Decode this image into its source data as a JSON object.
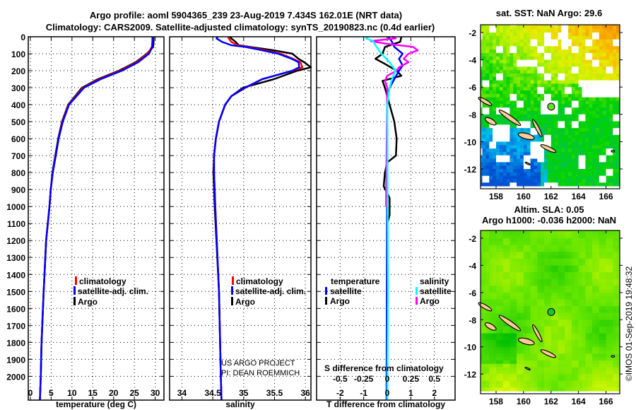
{
  "title": {
    "line1": "Argo profile: aoml 5904365_239 23-Aug-2019 7.434S 162.01E (NRT data)",
    "line2": "Climatology: CARS2009. Satellite-adjusted climatology: synTS_20190823.nc (0.4d earlier)"
  },
  "depth_axis": {
    "ticks": [
      "0",
      "100",
      "200",
      "300",
      "400",
      "500",
      "600",
      "700",
      "800",
      "900",
      "1000",
      "1100",
      "1200",
      "1300",
      "1400",
      "1500",
      "1600",
      "1700",
      "1800",
      "1900",
      "2000"
    ],
    "ylim": [
      2140,
      0
    ]
  },
  "chart_data": [
    {
      "type": "line",
      "xlabel": "temperature (deg C)",
      "ylabel": "depth",
      "xlim": [
        -0.5,
        32.1
      ],
      "ylim": [
        2140,
        0
      ],
      "grid": true,
      "xticks": [
        0,
        5,
        10,
        15,
        20,
        25,
        30
      ],
      "xtick_labels": [
        "0",
        "5",
        "10",
        "15",
        "20",
        "25",
        "30"
      ],
      "legend": {
        "placement": "lower-center",
        "items": [
          "climatology",
          "satellite-adj. clim.",
          "Argo"
        ]
      },
      "series": [
        {
          "name": "Argo",
          "color": "#000000",
          "depth": [
            0,
            30,
            60,
            100,
            150,
            200,
            250,
            300,
            400,
            500,
            600,
            700,
            800,
            900,
            1000,
            1200,
            1500,
            1800,
            2000,
            2140
          ],
          "values": [
            29.6,
            29.6,
            29.5,
            28.0,
            25.3,
            21.3,
            16.2,
            12.4,
            9.1,
            7.6,
            6.7,
            6.0,
            5.3,
            4.9,
            4.6,
            3.8,
            3.2,
            2.7,
            2.5,
            2.3
          ]
        },
        {
          "name": "climatology",
          "color": "#ff0000",
          "depth": [
            0,
            30,
            60,
            100,
            150,
            200,
            250,
            300,
            400,
            500,
            600,
            700,
            800,
            900,
            1000,
            1200,
            1500,
            1800,
            2000,
            2140
          ],
          "values": [
            29.3,
            29.3,
            29.2,
            28.2,
            25.6,
            21.7,
            16.6,
            12.7,
            9.2,
            7.7,
            6.8,
            6.1,
            5.4,
            4.9,
            4.6,
            3.8,
            3.2,
            2.7,
            2.5,
            2.3
          ]
        },
        {
          "name": "satellite-adj. clim.",
          "color": "#0000ff",
          "depth": [
            0,
            30,
            60,
            100,
            150,
            200,
            250,
            300,
            400,
            500,
            600,
            700,
            800,
            900,
            1000,
            1200,
            1500,
            1800,
            2000,
            2140
          ],
          "values": [
            29.5,
            29.4,
            29.3,
            28.5,
            25.9,
            22.0,
            16.9,
            12.9,
            9.3,
            7.8,
            6.8,
            6.1,
            5.4,
            4.9,
            4.6,
            3.8,
            3.2,
            2.7,
            2.5,
            2.3
          ]
        }
      ]
    },
    {
      "type": "line",
      "xlabel": "salinity",
      "ylabel": "depth",
      "xlim": [
        33.8,
        36.09
      ],
      "ylim": [
        2140,
        0
      ],
      "grid": true,
      "xticks": [
        34,
        34.5,
        35,
        35.5,
        36
      ],
      "xtick_labels": [
        "34",
        "34.5",
        "35",
        "35.5",
        "36"
      ],
      "legend": {
        "placement": "lower-center",
        "items": [
          "climatology",
          "satellite-adj. clim.",
          "Argo"
        ]
      },
      "series": [
        {
          "name": "Argo",
          "color": "#000000",
          "depth": [
            0,
            10,
            30,
            50,
            60,
            80,
            100,
            130,
            150,
            180,
            200,
            250,
            300,
            350,
            400,
            500,
            600,
            700,
            800,
            1000,
            1500,
            2000,
            2140
          ],
          "values": [
            34.78,
            34.8,
            34.87,
            34.92,
            35.1,
            35.49,
            35.79,
            35.89,
            35.98,
            36.1,
            35.87,
            35.49,
            34.99,
            34.8,
            34.7,
            34.6,
            34.55,
            34.52,
            34.51,
            34.53,
            34.6,
            34.63,
            34.64
          ]
        },
        {
          "name": "climatology",
          "color": "#ff0000",
          "depth": [
            0,
            10,
            30,
            50,
            60,
            80,
            100,
            130,
            150,
            180,
            200,
            250,
            300,
            350,
            400,
            500,
            600,
            700,
            800,
            1000,
            1500,
            2000,
            2140
          ],
          "values": [
            34.75,
            34.76,
            34.8,
            34.9,
            35.06,
            35.35,
            35.6,
            35.8,
            35.92,
            35.95,
            35.8,
            35.3,
            35.03,
            34.8,
            34.7,
            34.6,
            34.55,
            34.52,
            34.52,
            34.54,
            34.6,
            34.63,
            34.64
          ]
        },
        {
          "name": "satellite-adj. clim.",
          "color": "#0000ff",
          "depth": [
            0,
            10,
            30,
            50,
            60,
            80,
            100,
            130,
            150,
            180,
            200,
            250,
            300,
            350,
            400,
            500,
            600,
            700,
            800,
            1000,
            1500,
            2000,
            2140
          ],
          "values": [
            34.58,
            34.56,
            34.65,
            34.8,
            35.03,
            35.3,
            35.56,
            35.78,
            35.89,
            35.9,
            35.79,
            35.3,
            35.02,
            34.8,
            34.7,
            34.6,
            34.55,
            34.52,
            34.52,
            34.54,
            34.6,
            34.63,
            34.64
          ]
        }
      ]
    },
    {
      "type": "line",
      "xlabel": "T difference from climatology",
      "xlabel2": "S difference from climatology",
      "ylabel": "depth",
      "xlim": [
        -3.0,
        2.88
      ],
      "xlim_s": [
        -0.75,
        0.72
      ],
      "ylim": [
        2140,
        0
      ],
      "grid": true,
      "xticks": [
        -2,
        -1,
        0,
        1,
        2
      ],
      "xtick_labels": [
        "-2",
        "-1",
        "0",
        "1",
        "2"
      ],
      "xticks_s": [
        -0.5,
        -0.25,
        0,
        0.25,
        0.5
      ],
      "xtick_labels_s": [
        "-0.5",
        "-0.25",
        "0",
        "0.25",
        "0.5"
      ],
      "legend": {
        "placement": "lower",
        "temperature_header": "temperature",
        "salinity_header": "salinity",
        "items": [
          "satellite",
          "Argo",
          "satellite",
          "Argo"
        ]
      },
      "series": [
        {
          "name": "temperature Argo",
          "axis": "T",
          "color": "#000000",
          "depth": [
            0,
            30,
            60,
            100,
            130,
            160,
            200,
            230,
            260,
            300,
            400,
            500,
            600,
            700,
            740,
            800,
            880,
            950,
            1050,
            1100,
            1500,
            2000,
            2140
          ],
          "values": [
            0.6,
            0.55,
            -0.1,
            -0.2,
            -0.5,
            -0.1,
            0.4,
            0.6,
            -0.2,
            -0.1,
            0.1,
            0.3,
            0.4,
            0.37,
            0,
            -0.1,
            -0.15,
            0.1,
            0.1,
            0,
            0,
            0,
            0
          ]
        },
        {
          "name": "temperature satellite",
          "axis": "T",
          "color": "#0000ff",
          "depth": [
            0,
            30,
            60,
            100,
            130,
            170,
            200,
            250,
            300,
            350,
            2140
          ],
          "values": [
            0.05,
            0.2,
            0.3,
            0.65,
            0.5,
            0.65,
            0.5,
            0.3,
            0.1,
            0,
            -0.03
          ]
        },
        {
          "name": "salinity Argo",
          "axis": "S",
          "color": "#ff00ff",
          "depth": [
            0,
            10,
            25,
            40,
            60,
            80,
            100,
            130,
            150,
            180,
            200,
            230,
            260,
            300,
            1000
          ],
          "values": [
            0.05,
            0.09,
            -0.175,
            -0.025,
            0.275,
            0.325,
            0.225,
            0.175,
            0.225,
            0.125,
            0.1,
            0,
            -0.025,
            0,
            -0.0125
          ]
        },
        {
          "name": "salinity satellite",
          "axis": "S",
          "color": "#00ffff",
          "depth": [
            0,
            10,
            25,
            50,
            100,
            150,
            200,
            250,
            300,
            400,
            1500,
            2140
          ],
          "values": [
            -0.2,
            -0.225,
            -0.15,
            -0.125,
            -0.0625,
            0.025,
            0.0875,
            0.05,
            0.025,
            0,
            0.0075,
            0
          ]
        }
      ]
    }
  ],
  "credits": {
    "project": "US ARGO PROJECT",
    "pi": "PI: DEAN ROEMMICH",
    "timestamp": "©IMOS 01-Sep-2019 19:48:32"
  },
  "maps": [
    {
      "title": "sat. SST: NaN Argo: 29.6",
      "lon_range": [
        156.87,
        167.0
      ],
      "lat_range": [
        -13.45,
        -1.43
      ],
      "lon_ticks": [
        "158",
        "160",
        "162",
        "164",
        "166"
      ],
      "lat_ticks": [
        "-2",
        "-4",
        "-6",
        "-8",
        "-10",
        "-12"
      ],
      "marker": {
        "lon": 162.01,
        "lat": -7.434,
        "color": "#66e022"
      }
    },
    {
      "title": "Altim. SLA: 0.05",
      "subtitle": "Argo h1000: -0.036 h2000: NaN",
      "lon_range": [
        156.87,
        167.0
      ],
      "lat_range": [
        -13.45,
        -1.43
      ],
      "lon_ticks": [
        "158",
        "160",
        "162",
        "164",
        "166"
      ],
      "lat_ticks": [
        "-2",
        "-4",
        "-6",
        "-8",
        "-10",
        "-12"
      ],
      "marker": {
        "lon": 162.01,
        "lat": -7.434,
        "color": "#22c040"
      }
    }
  ]
}
